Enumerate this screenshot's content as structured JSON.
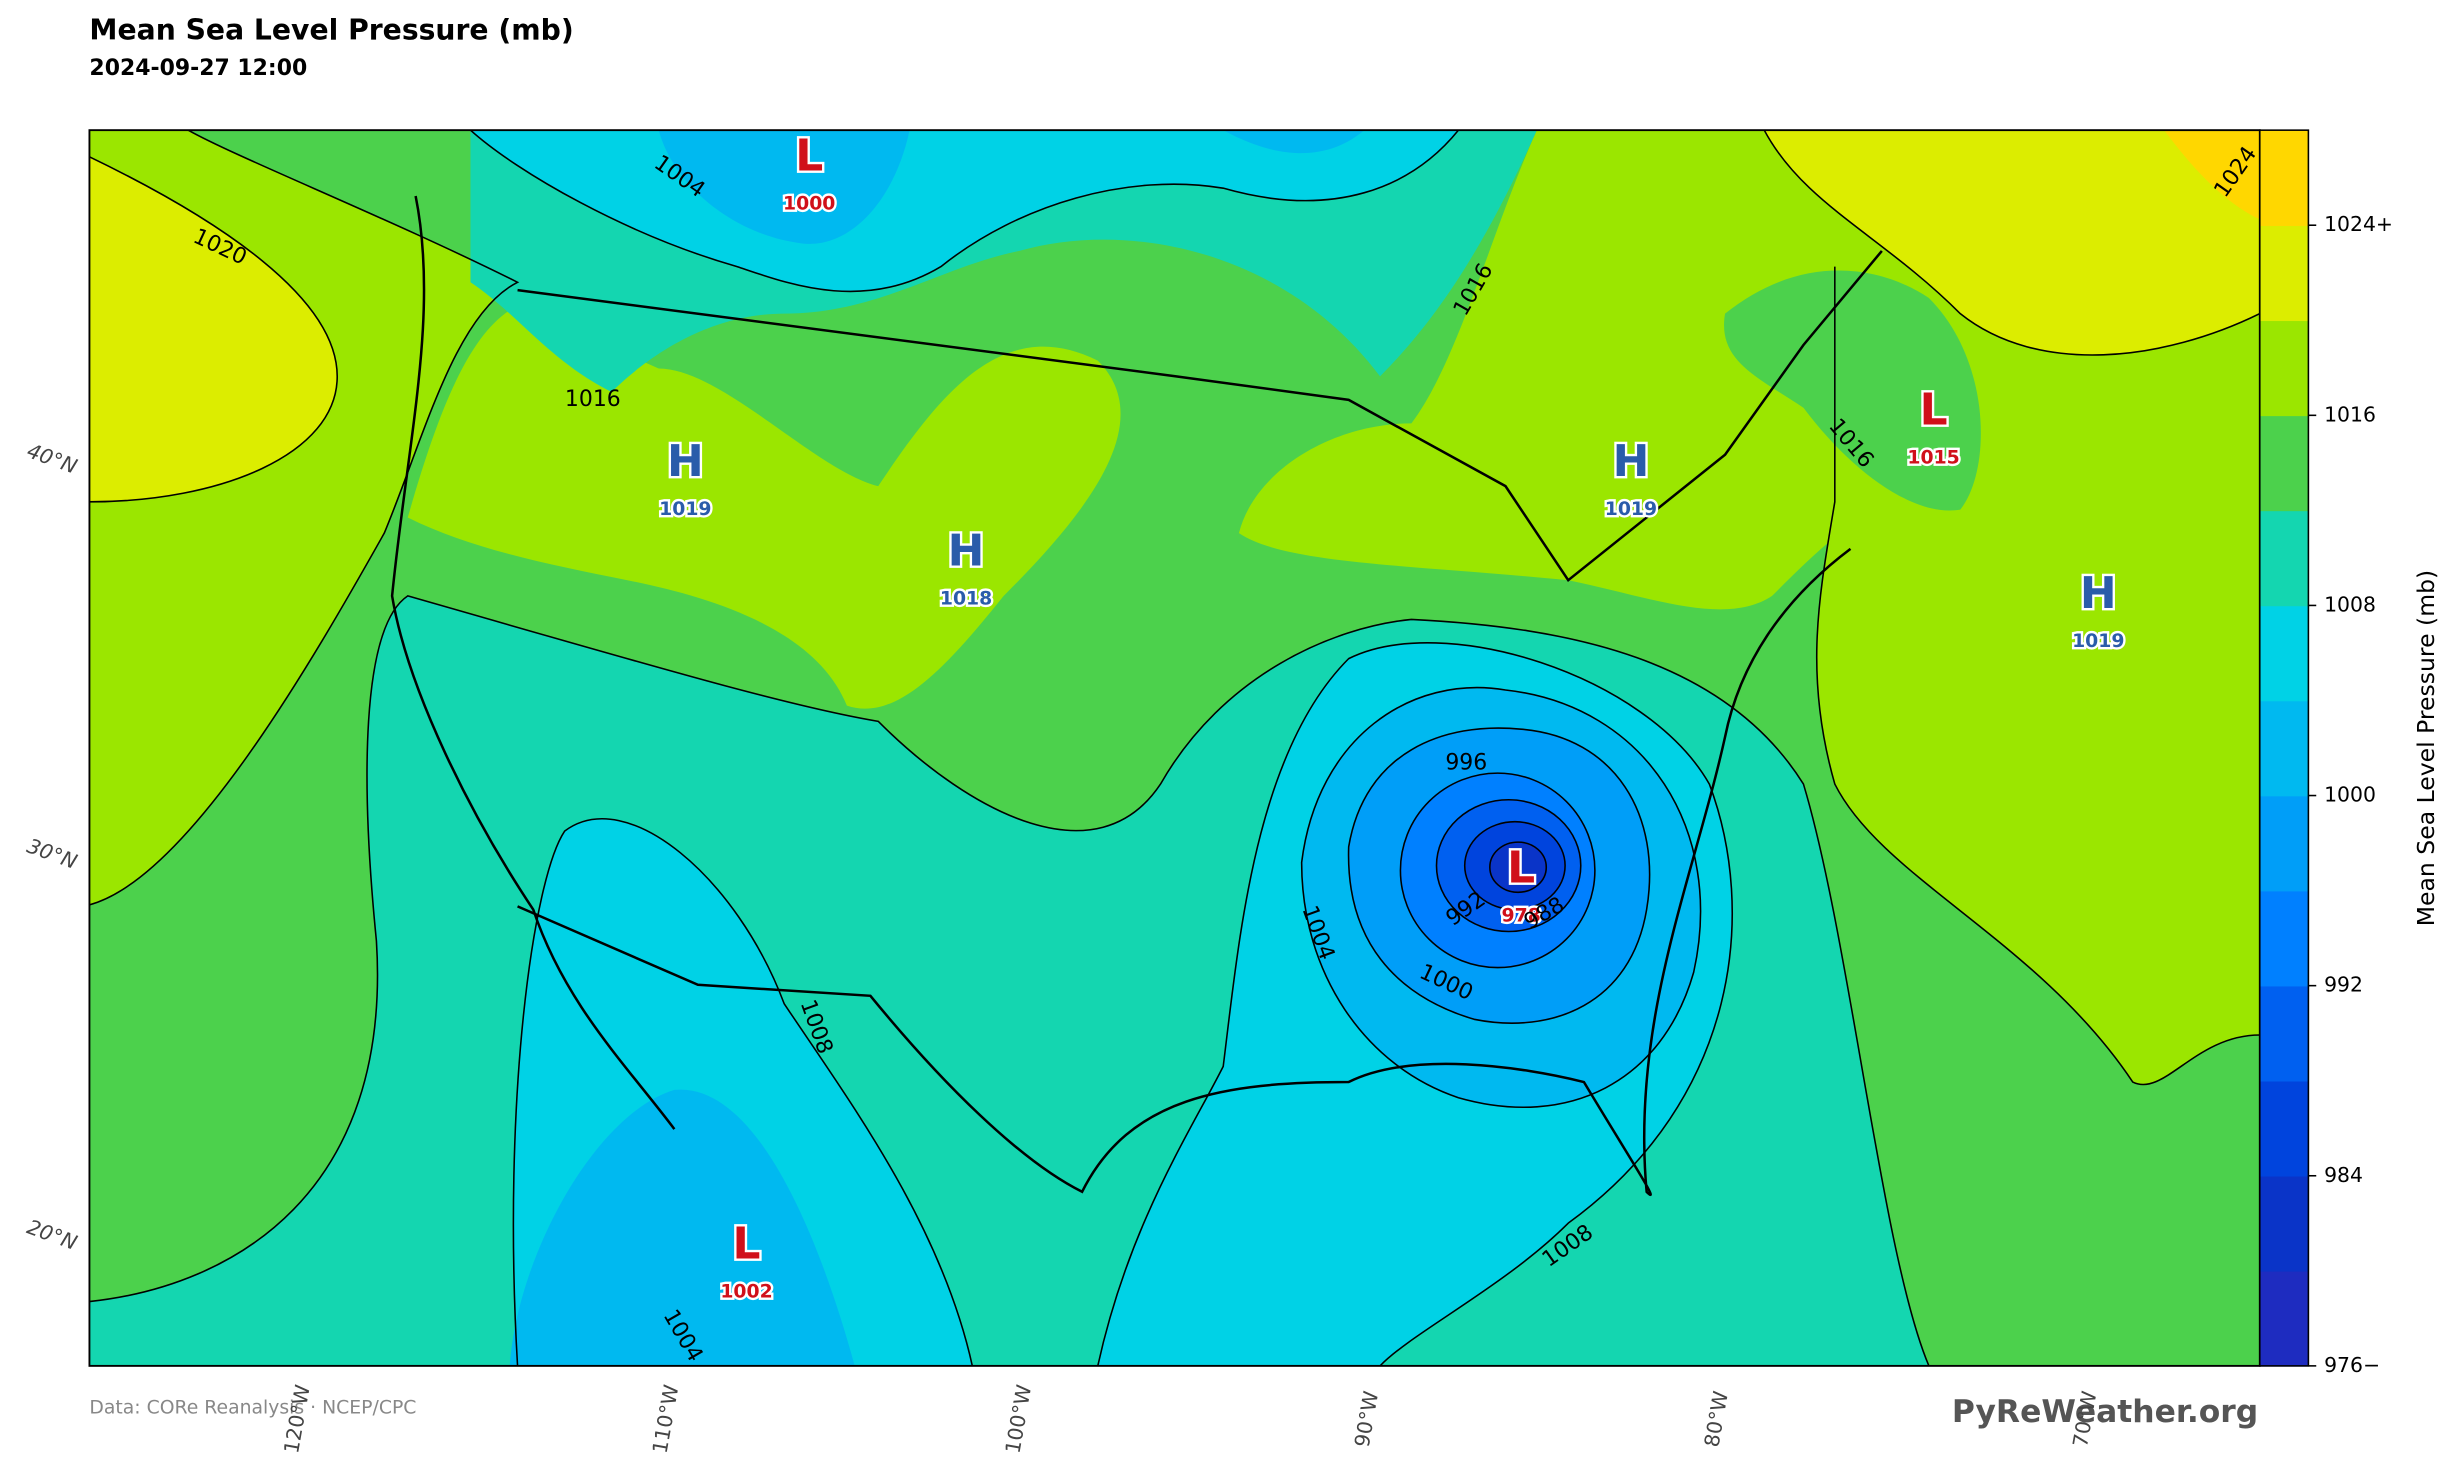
{
  "title": "Mean Sea Level Pressure (mb)",
  "subtitle": "2024-09-27 12:00",
  "colorbar": {
    "label": "Mean Sea Level Pressure (mb)",
    "lim": [
      976,
      1028
    ],
    "ticks": [
      {
        "value": 976,
        "label": "976−"
      },
      984,
      992,
      1000,
      1008,
      1016,
      {
        "value": 1024,
        "label": "1024+"
      }
    ],
    "colors": [
      "#1e2cc0",
      "#0a34c8",
      "#0044dd",
      "#0060f0",
      "#0080ff",
      "#009ef8",
      "#00b9f0",
      "#00d2e6",
      "#14d6b0",
      "#4cd14c",
      "#9be600",
      "#dced00",
      "#ffd700"
    ]
  },
  "pressure_centers": [
    {
      "symbol": "H",
      "value": 1019
    },
    {
      "symbol": "H",
      "value": 1018
    },
    {
      "symbol": "H",
      "value": 1019
    },
    {
      "symbol": "H",
      "value": 1019
    },
    {
      "symbol": "L",
      "value": 1000
    },
    {
      "symbol": "L",
      "value": 978
    },
    {
      "symbol": "L",
      "value": 1002
    },
    {
      "symbol": "L",
      "value": 1015
    }
  ],
  "contour_labels": [
    1020,
    1004,
    1016,
    1016,
    1016,
    1024,
    996,
    992,
    988,
    1004,
    1000,
    1008,
    1008,
    1004
  ],
  "latitude_labels": [
    "40°N",
    "30°N",
    "20°N"
  ],
  "longitude_labels": [
    "120°W",
    "110°W",
    "100°W",
    "90°W",
    "80°W",
    "70°W"
  ],
  "credit": "Data: CORe Reanalysis  ·  NCEP/CPC",
  "watermark": "PyReWeather.org"
}
